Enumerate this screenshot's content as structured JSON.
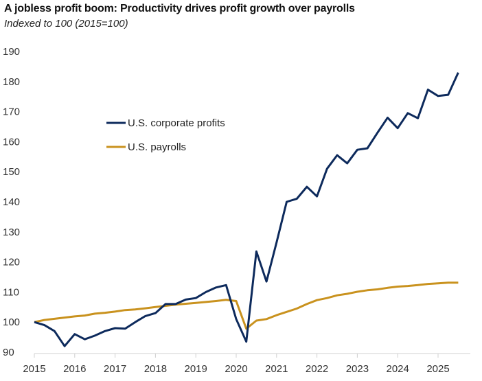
{
  "chart_data": {
    "type": "line",
    "title": "A jobless profit boom: Productivity drives profit growth over payrolls",
    "subtitle": "Indexed to 100 (2015=100)",
    "xlabel": "",
    "ylabel": "",
    "ylim": [
      90,
      190
    ],
    "yticks": [
      "90",
      "100",
      "110",
      "120",
      "130",
      "140",
      "150",
      "160",
      "170",
      "180",
      "190"
    ],
    "xticks": [
      "2015",
      "2016",
      "2017",
      "2018",
      "2019",
      "2020",
      "2021",
      "2022",
      "2023",
      "2024",
      "2025"
    ],
    "x_start": 2015,
    "x_step_years": 0.25,
    "legend_position": "upper-left",
    "grid": false,
    "series": [
      {
        "name": "U.S. corporate profits",
        "color": "#0d2a5c",
        "values": [
          100,
          99,
          97,
          92,
          96,
          94.3,
          95.5,
          97,
          98,
          97.8,
          100,
          102,
          103,
          106,
          106,
          107.5,
          108,
          110,
          111.5,
          112.3,
          101,
          93.5,
          123.5,
          113.5,
          126.5,
          140,
          141,
          145,
          141.8,
          151,
          155.5,
          152.8,
          157.3,
          157.8,
          163,
          168,
          164.5,
          169.5,
          167.8,
          177.3,
          175.2,
          175.6,
          183
        ]
      },
      {
        "name": "U.S. payrolls",
        "color": "#c9921e",
        "values": [
          100,
          100.7,
          101.1,
          101.5,
          101.9,
          102.2,
          102.8,
          103.1,
          103.5,
          104,
          104.2,
          104.6,
          105,
          105.4,
          105.8,
          106.1,
          106.4,
          106.7,
          107,
          107.4,
          107,
          97.8,
          100.5,
          101,
          102.3,
          103.4,
          104.5,
          106,
          107.3,
          108,
          108.9,
          109.4,
          110.1,
          110.6,
          110.9,
          111.4,
          111.8,
          112,
          112.3,
          112.7,
          112.9,
          113.1,
          113.1
        ]
      }
    ]
  }
}
